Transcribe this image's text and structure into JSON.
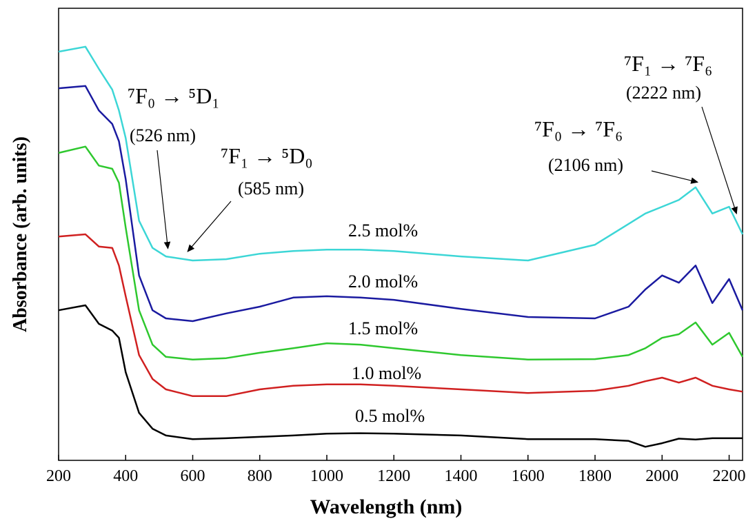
{
  "chart_data": {
    "type": "line",
    "xlabel": "Wavelength (nm)",
    "ylabel": "Absorbance (arb. units)",
    "x": [
      200,
      280,
      320,
      360,
      380,
      400,
      440,
      480,
      520,
      600,
      700,
      800,
      900,
      1000,
      1100,
      1200,
      1400,
      1600,
      1800,
      1900,
      1950,
      2000,
      2050,
      2100,
      2150,
      2200,
      2240
    ],
    "xlim": [
      200,
      2240
    ],
    "xticks": [
      200,
      400,
      600,
      800,
      1000,
      1200,
      1400,
      1600,
      1800,
      2000,
      2200
    ],
    "ylim": [
      0,
      100
    ],
    "series": [
      {
        "name": "0.5 mol%",
        "color": "#000000",
        "values": [
          33.2,
          34.3,
          30.2,
          28.7,
          27.1,
          19.5,
          10.5,
          7,
          5.5,
          4.7,
          4.9,
          5.2,
          5.5,
          5.9,
          6,
          5.9,
          5.5,
          4.7,
          4.7,
          4.3,
          3.0,
          3.8,
          4.8,
          4.6,
          4.9,
          4.9,
          4.9
        ]
      },
      {
        "name": "1.0 mol%",
        "color": "#d02020",
        "values": [
          49.5,
          50.0,
          47.3,
          47.0,
          43.1,
          36.3,
          23.3,
          18.0,
          15.7,
          14.2,
          14.2,
          15.7,
          16.5,
          16.8,
          16.8,
          16.5,
          15.7,
          14.9,
          15.4,
          16.5,
          17.5,
          18.3,
          17.2,
          18.3,
          16.5,
          15.7,
          15.2
        ]
      },
      {
        "name": "1.5 mol%",
        "color": "#2ec82e",
        "values": [
          68.0,
          69.4,
          65.2,
          64.5,
          61.4,
          51.5,
          33.2,
          25.6,
          22.9,
          22.3,
          22.6,
          23.8,
          24.8,
          25.9,
          25.6,
          24.8,
          23.3,
          22.3,
          22.4,
          23.3,
          24.8,
          27.1,
          27.9,
          30.5,
          25.6,
          28.2,
          22.9
        ]
      },
      {
        "name": "2.0 mol%",
        "color": "#1a1aa0",
        "values": [
          82.3,
          82.8,
          77.4,
          74.4,
          70.6,
          62.2,
          40.9,
          33.2,
          31.4,
          30.8,
          32.5,
          34.0,
          36.0,
          36.3,
          36.0,
          35.5,
          33.5,
          31.7,
          31.4,
          34.0,
          37.8,
          40.9,
          39.3,
          43.1,
          34.8,
          40.1,
          33.2
        ]
      },
      {
        "name": "2.5 mol%",
        "color": "#3cd6d6",
        "values": [
          90.4,
          91.5,
          86.6,
          82.0,
          77.4,
          71.3,
          53.0,
          47.0,
          45.1,
          44.2,
          44.5,
          45.7,
          46.3,
          46.6,
          46.6,
          46.3,
          45.1,
          44.2,
          47.7,
          52.3,
          54.6,
          56.1,
          57.6,
          60.4,
          54.6,
          56.1,
          50.0
        ]
      }
    ],
    "annotations": [
      {
        "text": "⁷F₀ → ⁵D₁",
        "label": "(526 nm)",
        "x": 526
      },
      {
        "text": "⁷F₁ → ⁵D₀",
        "label": "(585 nm)",
        "x": 585
      },
      {
        "text": "⁷F₀ → ⁷F₆",
        "label": "(2106 nm)",
        "x": 2106
      },
      {
        "text": "⁷F₁ → ⁷F₆",
        "label": "(2222 nm)",
        "x": 2222
      }
    ]
  }
}
